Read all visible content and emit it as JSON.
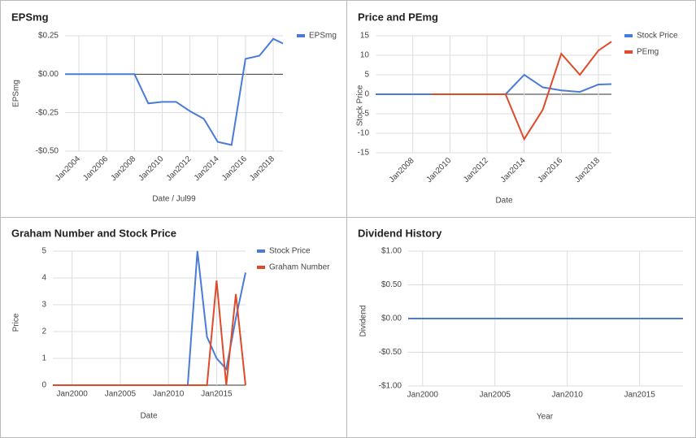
{
  "chart_data": [
    {
      "type": "line",
      "title": "EPSmg",
      "xlabel": "Date / Jul99",
      "ylabel": "EPSmg",
      "x": [
        2003,
        2004,
        2005,
        2006,
        2007,
        2008,
        2009,
        2010,
        2011,
        2012,
        2013,
        2014,
        2015,
        2016,
        2017,
        2018,
        2018.7
      ],
      "series": [
        {
          "name": "EPSmg",
          "color": "#4a7bd6",
          "values": [
            0,
            0,
            0,
            0,
            0,
            0,
            -0.19,
            -0.18,
            -0.18,
            -0.24,
            -0.29,
            -0.44,
            -0.46,
            0.1,
            0.12,
            0.23,
            0.2
          ]
        }
      ],
      "xlim": [
        2003,
        2018.7
      ],
      "xticks": [
        {
          "value": 2004,
          "label": "Jan2004"
        },
        {
          "value": 2006,
          "label": "Jan2006"
        },
        {
          "value": 2008,
          "label": "Jan2008"
        },
        {
          "value": 2010,
          "label": "Jan2010"
        },
        {
          "value": 2012,
          "label": "Jan2012"
        },
        {
          "value": 2014,
          "label": "Jan2014"
        },
        {
          "value": 2016,
          "label": "Jan2016"
        },
        {
          "value": 2018,
          "label": "Jan2018"
        }
      ],
      "ylim": [
        -0.5,
        0.25
      ],
      "yticks": [
        {
          "value": 0.25,
          "label": "$0.25"
        },
        {
          "value": 0,
          "label": "$0.00"
        },
        {
          "value": -0.25,
          "label": "-$0.25"
        },
        {
          "value": -0.5,
          "label": "-$0.50"
        }
      ],
      "grid": true,
      "legend": "right"
    },
    {
      "type": "line",
      "title": "Price and PEmg",
      "xlabel": "Date",
      "ylabel": "Stock Price",
      "x": [
        2006,
        2007,
        2008,
        2009,
        2010,
        2011,
        2012,
        2013,
        2014,
        2015,
        2016,
        2017,
        2018,
        2018.7
      ],
      "series": [
        {
          "name": "Stock Price",
          "color": "#4a7bd6",
          "values": [
            0,
            0,
            0,
            0,
            0,
            0,
            0,
            0,
            5,
            1.8,
            1.0,
            0.6,
            2.5,
            2.6
          ]
        },
        {
          "name": "PEmg",
          "color": "#dd4b2a",
          "values": [
            null,
            null,
            null,
            0,
            0,
            0,
            0,
            0,
            -11.5,
            -4,
            10.4,
            5,
            11.2,
            13.5
          ]
        }
      ],
      "xlim": [
        2006,
        2018.7
      ],
      "xticks": [
        {
          "value": 2008,
          "label": "Jan2008"
        },
        {
          "value": 2010,
          "label": "Jan2010"
        },
        {
          "value": 2012,
          "label": "Jan2012"
        },
        {
          "value": 2014,
          "label": "Jan2014"
        },
        {
          "value": 2016,
          "label": "Jan2016"
        },
        {
          "value": 2018,
          "label": "Jan2018"
        }
      ],
      "ylim": [
        -15,
        15
      ],
      "yticks": [
        15,
        10,
        5,
        0,
        -5,
        -10,
        -15
      ],
      "grid": true,
      "legend": "right"
    },
    {
      "type": "line",
      "title": "Graham Number and Stock Price",
      "xlabel": "Date",
      "ylabel": "Price",
      "x": [
        1998,
        1999,
        2000,
        2001,
        2002,
        2003,
        2004,
        2005,
        2006,
        2007,
        2008,
        2009,
        2010,
        2011,
        2012,
        2013,
        2014,
        2015,
        2016,
        2017,
        2018
      ],
      "series": [
        {
          "name": "Stock Price",
          "color": "#4a7bd6",
          "values": [
            0,
            0,
            0,
            0,
            0,
            0,
            0,
            0,
            0,
            0,
            0,
            0,
            0,
            0,
            0,
            5,
            1.8,
            1.0,
            0.6,
            2.5,
            4.2
          ]
        },
        {
          "name": "Graham Number",
          "color": "#dd4b2a",
          "values": [
            0,
            0,
            0,
            0,
            0,
            0,
            0,
            0,
            0,
            0,
            0,
            0,
            0,
            0,
            0,
            0,
            0,
            3.9,
            0,
            3.4,
            0
          ]
        }
      ],
      "xlim": [
        1998,
        2018
      ],
      "xticks": [
        {
          "value": 2000,
          "label": "Jan2000"
        },
        {
          "value": 2005,
          "label": "Jan2005"
        },
        {
          "value": 2010,
          "label": "Jan2010"
        },
        {
          "value": 2015,
          "label": "Jan2015"
        }
      ],
      "ylim": [
        0,
        5
      ],
      "yticks": [
        5,
        4,
        3,
        2,
        1,
        0
      ],
      "grid": true,
      "legend": "right"
    },
    {
      "type": "line",
      "title": "Dividend History",
      "xlabel": "Year",
      "ylabel": "Dividend",
      "x": [
        1999,
        2000,
        2001,
        2002,
        2003,
        2004,
        2005,
        2006,
        2007,
        2008,
        2009,
        2010,
        2011,
        2012,
        2013,
        2014,
        2015,
        2016,
        2017,
        2018
      ],
      "series": [
        {
          "color": "#4a7bd6",
          "values": [
            0,
            0,
            0,
            0,
            0,
            0,
            0,
            0,
            0,
            0,
            0,
            0,
            0,
            0,
            0,
            0,
            0,
            0,
            0,
            0
          ]
        }
      ],
      "xlim": [
        1999,
        2018
      ],
      "xticks": [
        {
          "value": 2000,
          "label": "Jan2000"
        },
        {
          "value": 2005,
          "label": "Jan2005"
        },
        {
          "value": 2010,
          "label": "Jan2010"
        },
        {
          "value": 2015,
          "label": "Jan2015"
        }
      ],
      "ylim": [
        -1,
        1
      ],
      "yticks": [
        {
          "value": 1,
          "label": "$1.00"
        },
        {
          "value": 0.5,
          "label": "$0.50"
        },
        {
          "value": 0,
          "label": "$0.00"
        },
        {
          "value": -0.5,
          "label": "-$0.50"
        },
        {
          "value": -1,
          "label": "-$1.00"
        }
      ],
      "grid": true
    }
  ]
}
